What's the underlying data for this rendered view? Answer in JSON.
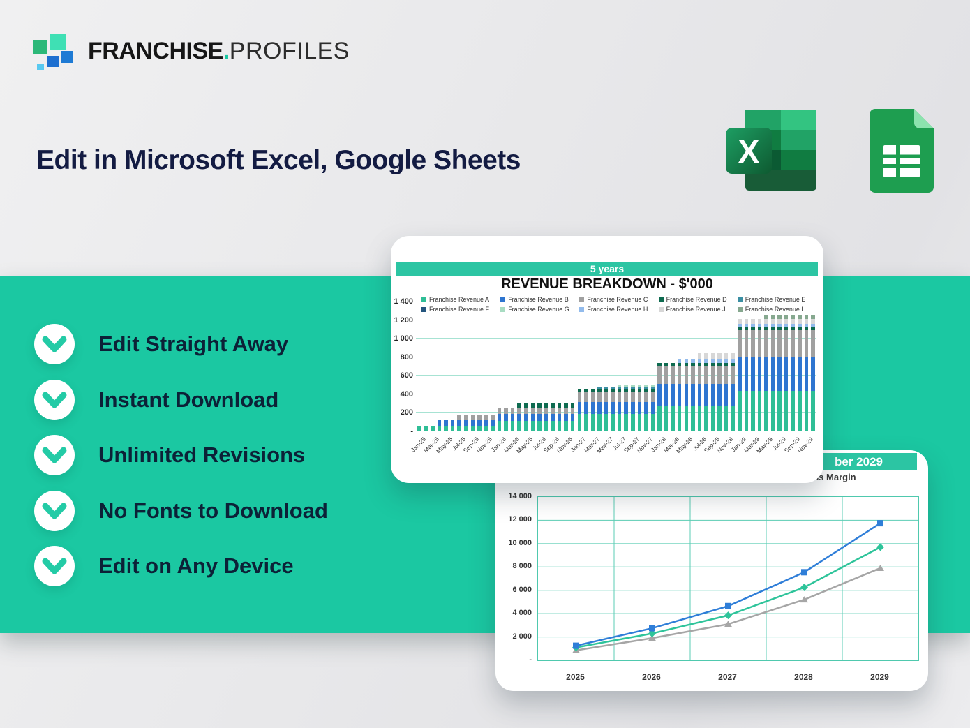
{
  "logo": {
    "brand_bold": "FRANCHISE",
    "brand_dot": ".",
    "brand_light": "PROFILES"
  },
  "heading": "Edit in Microsoft Excel, Google Sheets",
  "features": [
    "Edit Straight Away",
    "Instant Download",
    "Unlimited Revisions",
    "No Fonts to Download",
    "Edit on Any Device"
  ],
  "icons": {
    "excel": "excel-icon",
    "google_sheets": "google-sheets-icon",
    "bullet": "chevron-down-circle-icon"
  },
  "colors": {
    "band": "#1bc8a2",
    "chart_header": "#2cc5a3",
    "heading_text": "#131b42",
    "feature_text": "#0c2137"
  },
  "chart_data": [
    {
      "type": "bar",
      "stacked": true,
      "panel_label": "5 years",
      "title": "REVENUE BREAKDOWN - $'000",
      "ylim": [
        0,
        1400
      ],
      "ytick_labels": [
        "1 400",
        "1 200",
        "1 000",
        "800",
        "600",
        "400",
        "200",
        "-"
      ],
      "ytick_values": [
        1400,
        1200,
        1000,
        800,
        600,
        400,
        200,
        0
      ],
      "grid": true,
      "legend_position": "top",
      "xtick_labels": [
        "Jan-25",
        "Mar-25",
        "May-25",
        "Jul-25",
        "Sep-25",
        "Nov-25",
        "Jan-26",
        "Mar-26",
        "May-26",
        "Jul-26",
        "Sep-26",
        "Nov-26",
        "Jan-27",
        "Mar-27",
        "May-27",
        "Jul-27",
        "Sep-27",
        "Nov-27",
        "Jan-28",
        "Mar-28",
        "May-28",
        "Jul-28",
        "Sep-28",
        "Nov-28",
        "Jan-29",
        "Mar-29",
        "May-29",
        "Jul-29",
        "Sep-29",
        "Nov-29"
      ],
      "months_per_tick": 2,
      "series": [
        {
          "name": "Franchise Revenue A",
          "color": "#2fbe96",
          "values": [
            60,
            60,
            60,
            60,
            60,
            60,
            60,
            60,
            60,
            60,
            60,
            60,
            110,
            110,
            110,
            110,
            110,
            110,
            110,
            110,
            110,
            110,
            110,
            110,
            185,
            185,
            185,
            185,
            185,
            185,
            185,
            185,
            185,
            185,
            185,
            185,
            275,
            275,
            275,
            275,
            275,
            275,
            275,
            275,
            275,
            275,
            275,
            275,
            440,
            440,
            440,
            440,
            440,
            440,
            440,
            440,
            440,
            440,
            440,
            440
          ]
        },
        {
          "name": "Franchise Revenue B",
          "color": "#2e75d0",
          "values": [
            0,
            0,
            0,
            60,
            60,
            60,
            60,
            60,
            60,
            60,
            60,
            60,
            75,
            75,
            75,
            75,
            75,
            75,
            75,
            75,
            75,
            75,
            75,
            75,
            130,
            130,
            130,
            130,
            130,
            130,
            130,
            130,
            130,
            130,
            130,
            130,
            235,
            235,
            235,
            235,
            235,
            235,
            235,
            235,
            235,
            235,
            235,
            235,
            360,
            360,
            360,
            360,
            360,
            360,
            360,
            360,
            360,
            360,
            360,
            360
          ]
        },
        {
          "name": "Franchise Revenue C",
          "color": "#a0a0a0",
          "values": [
            0,
            0,
            0,
            0,
            0,
            0,
            55,
            55,
            55,
            55,
            55,
            55,
            70,
            70,
            70,
            70,
            70,
            70,
            70,
            70,
            70,
            70,
            70,
            70,
            105,
            105,
            105,
            105,
            105,
            105,
            105,
            105,
            105,
            105,
            105,
            105,
            190,
            190,
            190,
            190,
            190,
            190,
            190,
            190,
            190,
            190,
            190,
            190,
            290,
            290,
            290,
            290,
            290,
            290,
            290,
            290,
            290,
            290,
            290,
            290
          ]
        },
        {
          "name": "Franchise Revenue D",
          "color": "#0e6b50",
          "values": [
            0,
            0,
            0,
            0,
            0,
            0,
            0,
            0,
            0,
            0,
            0,
            0,
            0,
            0,
            0,
            45,
            45,
            45,
            45,
            45,
            45,
            45,
            45,
            45,
            35,
            35,
            35,
            35,
            35,
            35,
            35,
            35,
            35,
            35,
            35,
            35,
            40,
            40,
            40,
            40,
            40,
            40,
            40,
            40,
            40,
            40,
            40,
            40,
            35,
            35,
            35,
            35,
            35,
            35,
            35,
            35,
            35,
            35,
            35,
            35
          ]
        },
        {
          "name": "Franchise Revenue E",
          "color": "#3b8fa3",
          "values": [
            0,
            0,
            0,
            0,
            0,
            0,
            0,
            0,
            0,
            0,
            0,
            0,
            0,
            0,
            0,
            0,
            0,
            0,
            0,
            0,
            0,
            0,
            0,
            0,
            0,
            0,
            0,
            25,
            25,
            25,
            25,
            25,
            25,
            25,
            25,
            25,
            0,
            0,
            0,
            0,
            0,
            0,
            0,
            0,
            0,
            0,
            0,
            0,
            0,
            0,
            0,
            0,
            0,
            0,
            0,
            0,
            0,
            0,
            0,
            0
          ]
        },
        {
          "name": "Franchise Revenue F",
          "color": "#24557e",
          "values": [
            0,
            0,
            0,
            0,
            0,
            0,
            0,
            0,
            0,
            0,
            0,
            0,
            0,
            0,
            0,
            0,
            0,
            0,
            0,
            0,
            0,
            0,
            0,
            0,
            0,
            0,
            0,
            0,
            0,
            0,
            0,
            0,
            0,
            0,
            0,
            0,
            0,
            0,
            0,
            0,
            0,
            0,
            0,
            0,
            0,
            0,
            0,
            0,
            0,
            0,
            0,
            0,
            0,
            0,
            0,
            0,
            0,
            0,
            0,
            0
          ]
        },
        {
          "name": "Franchise Revenue G",
          "color": "#a8dcc2",
          "values": [
            0,
            0,
            0,
            0,
            0,
            0,
            0,
            0,
            0,
            0,
            0,
            0,
            0,
            0,
            0,
            0,
            0,
            0,
            0,
            0,
            0,
            0,
            0,
            0,
            0,
            0,
            0,
            0,
            0,
            0,
            25,
            25,
            25,
            25,
            25,
            25,
            0,
            0,
            0,
            0,
            0,
            0,
            0,
            0,
            0,
            0,
            0,
            0,
            0,
            0,
            0,
            0,
            0,
            0,
            0,
            0,
            0,
            0,
            0,
            0
          ]
        },
        {
          "name": "Franchise Revenue H",
          "color": "#92bbec",
          "values": [
            0,
            0,
            0,
            0,
            0,
            0,
            0,
            0,
            0,
            0,
            0,
            0,
            0,
            0,
            0,
            0,
            0,
            0,
            0,
            0,
            0,
            0,
            0,
            0,
            0,
            0,
            0,
            0,
            0,
            0,
            0,
            0,
            0,
            0,
            0,
            0,
            0,
            0,
            0,
            40,
            40,
            40,
            40,
            40,
            40,
            40,
            40,
            40,
            35,
            35,
            35,
            35,
            35,
            35,
            35,
            35,
            35,
            35,
            35,
            35
          ]
        },
        {
          "name": "Franchise Revenue J",
          "color": "#d7d7d7",
          "values": [
            0,
            0,
            0,
            0,
            0,
            0,
            0,
            0,
            0,
            0,
            0,
            0,
            0,
            0,
            0,
            0,
            0,
            0,
            0,
            0,
            0,
            0,
            0,
            0,
            0,
            0,
            0,
            0,
            0,
            0,
            0,
            0,
            0,
            0,
            0,
            0,
            0,
            0,
            0,
            0,
            0,
            0,
            60,
            60,
            60,
            60,
            60,
            60,
            55,
            55,
            55,
            55,
            55,
            55,
            55,
            55,
            55,
            55,
            55,
            55
          ]
        },
        {
          "name": "Franchise Revenue L",
          "color": "#86a88f",
          "values": [
            0,
            0,
            0,
            0,
            0,
            0,
            0,
            0,
            0,
            0,
            0,
            0,
            0,
            0,
            0,
            0,
            0,
            0,
            0,
            0,
            0,
            0,
            0,
            0,
            0,
            0,
            0,
            0,
            0,
            0,
            0,
            0,
            0,
            0,
            0,
            0,
            0,
            0,
            0,
            0,
            0,
            0,
            0,
            0,
            0,
            0,
            0,
            0,
            0,
            0,
            0,
            0,
            35,
            35,
            35,
            35,
            35,
            35,
            35,
            35
          ]
        }
      ]
    },
    {
      "type": "line",
      "header_text_visible": "ber 2029",
      "subtitle_text_visible": "oss Margin",
      "categories": [
        "2025",
        "2026",
        "2027",
        "2028",
        "2029"
      ],
      "ylim": [
        0,
        14000
      ],
      "ytick_labels": [
        "14 000",
        "12 000",
        "10 000",
        "8 000",
        "6 000",
        "4 000",
        "2 000",
        "-"
      ],
      "ytick_values": [
        14000,
        12000,
        10000,
        8000,
        6000,
        4000,
        2000,
        0
      ],
      "grid": true,
      "series": [
        {
          "name": "series-blue-squares",
          "marker": "square",
          "color": "#2f7ed8",
          "values": [
            1250,
            2750,
            4650,
            7550,
            11750
          ]
        },
        {
          "name": "series-teal-diamonds",
          "marker": "diamond",
          "color": "#2ec49a",
          "values": [
            1100,
            2300,
            3850,
            6250,
            9700
          ]
        },
        {
          "name": "series-gray-triangles",
          "marker": "triangle",
          "color": "#a6a6a6",
          "values": [
            850,
            1900,
            3100,
            5200,
            7900
          ]
        }
      ]
    }
  ]
}
